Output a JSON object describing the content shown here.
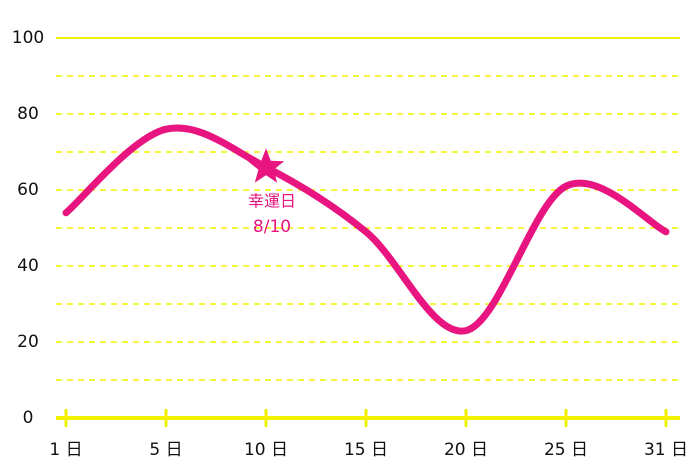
{
  "chart_data": {
    "type": "line",
    "categories": [
      "1 日",
      "5 日",
      "10 日",
      "15 日",
      "20 日",
      "25 日",
      "31 日"
    ],
    "series": [
      {
        "color": "#e8147f",
        "values": [
          54,
          76,
          66,
          49,
          23,
          61,
          49
        ]
      }
    ],
    "ylim": [
      0,
      100
    ],
    "yticks": [
      0,
      20,
      40,
      60,
      80,
      100
    ],
    "minor_yticks": [
      10,
      30,
      50,
      70,
      90
    ],
    "grid": true,
    "axis_color": "#f2f200",
    "annotations": [
      {
        "index": 2,
        "label": "幸運日",
        "date": "8/10"
      }
    ]
  }
}
